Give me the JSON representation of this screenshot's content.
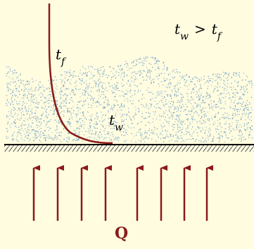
{
  "condition": {
    "t_w": "t",
    "w": "w",
    "gt": ">",
    "t_f": "t",
    "f": "f"
  },
  "curve_labels": {
    "tf_t": "t",
    "tf_sub": "f",
    "tw_t": "t",
    "tw_sub": "w"
  },
  "heat_label": "Q",
  "heat_arrow_count": 8,
  "colors": {
    "background": "#fffce0",
    "fluid_dots": "#6f9ec6",
    "temperature_curve": "#8b1a1a",
    "wall": "#000000",
    "arrows": "#8b1a1a"
  }
}
